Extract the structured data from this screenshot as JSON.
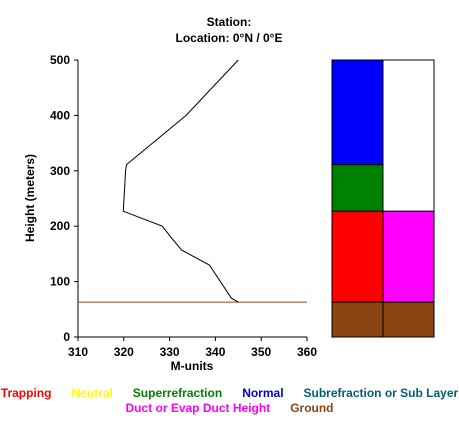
{
  "header": {
    "station_line": "Station:",
    "location_line": "Location:   0°N /   0°E"
  },
  "chart_data": {
    "type": "line",
    "xlabel": "M-units",
    "ylabel": "Height (meters)",
    "xlim": [
      310,
      360
    ],
    "ylim": [
      0,
      500
    ],
    "x_ticks": [
      "310",
      "320",
      "330",
      "340",
      "350",
      "360"
    ],
    "y_ticks": [
      "0",
      "100",
      "200",
      "300",
      "400",
      "500"
    ],
    "profile": {
      "x": [
        345.0,
        333.6,
        320.6,
        320.4,
        319.9,
        328.4,
        330.3,
        332.6,
        338.7,
        343.5,
        345.0
      ],
      "y": [
        500,
        400,
        311,
        300,
        227,
        200,
        180,
        157,
        130,
        70,
        63
      ]
    },
    "ground_height": 63,
    "colors": {
      "profile": "#000000",
      "ground_line": "#8B4513"
    }
  },
  "layer_column": {
    "min": 0,
    "max": 500,
    "left": [
      {
        "from": 311,
        "to": 500,
        "color": "#0000FF",
        "label": "Normal"
      },
      {
        "from": 227,
        "to": 311,
        "color": "#008000",
        "label": "Superrefraction"
      },
      {
        "from": 63,
        "to": 227,
        "color": "#FF0000",
        "label": "Trapping"
      },
      {
        "from": 0,
        "to": 63,
        "color": "#8B4513",
        "label": "Ground"
      }
    ],
    "right": [
      {
        "from": 227,
        "to": 500,
        "color": "#FFFFFF",
        "label": ""
      },
      {
        "from": 63,
        "to": 227,
        "color": "#FF00FF",
        "label": "Duct or Evap Duct Height"
      },
      {
        "from": 0,
        "to": 63,
        "color": "#8B4513",
        "label": "Ground"
      }
    ]
  },
  "legend": {
    "row1": [
      {
        "text": "Trapping",
        "color": "#FF0000"
      },
      {
        "text": "Neutral",
        "color": "#FFFF00"
      },
      {
        "text": "Superrefraction",
        "color": "#008000"
      },
      {
        "text": "Normal",
        "color": "#0000CD"
      },
      {
        "text": "Subrefraction or Sub Layer",
        "color": "#006070"
      }
    ],
    "row2": [
      {
        "text": "Duct or Evap Duct Height",
        "color": "#FF00FF"
      },
      {
        "text": "Ground",
        "color": "#8B4513"
      }
    ]
  }
}
